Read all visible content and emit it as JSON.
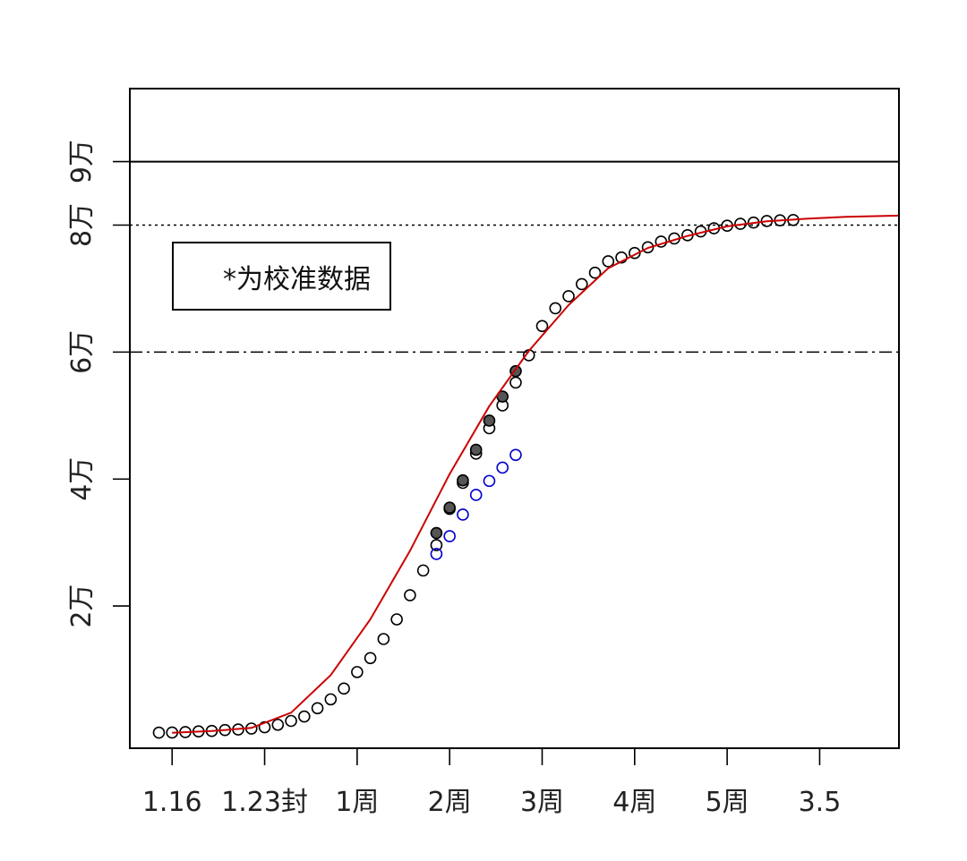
{
  "chart_data": {
    "type": "scatter",
    "x_ticks": [
      {
        "x": 0,
        "label": "1.16"
      },
      {
        "x": 7,
        "label": "1.23封"
      },
      {
        "x": 14,
        "label": "1周"
      },
      {
        "x": 21,
        "label": "2周"
      },
      {
        "x": 28,
        "label": "3周"
      },
      {
        "x": 35,
        "label": "4周"
      },
      {
        "x": 42,
        "label": "5周"
      },
      {
        "x": 49,
        "label": "3.5"
      }
    ],
    "y_ticks": [
      {
        "y": 20000,
        "label": "2万"
      },
      {
        "y": 40000,
        "label": "4万"
      },
      {
        "y": 60000,
        "label": "6万"
      },
      {
        "y": 80000,
        "label": "8万"
      },
      {
        "y": 90000,
        "label": "9万"
      }
    ],
    "xlim": [
      -3.2,
      55
    ],
    "ylim": [
      -2400,
      101500
    ],
    "reference_lines": [
      {
        "y": 90000,
        "style": "solid",
        "color": "#000000"
      },
      {
        "y": 80000,
        "style": "dotted",
        "color": "#000000"
      },
      {
        "y": 60000,
        "style": "dashdot",
        "color": "#000000"
      }
    ],
    "legend": {
      "text": "*为校准数据",
      "position": "top-left"
    },
    "colors": {
      "observed": "#000000",
      "calibration": "#0000cc",
      "fit": "#cc0000"
    },
    "series": [
      {
        "kind": "points-open",
        "color": "#000000",
        "x": [
          -1,
          0,
          1,
          2,
          3,
          4,
          5,
          6,
          7,
          8,
          9,
          10,
          11,
          12,
          13,
          14,
          15,
          16,
          17,
          18,
          19,
          20,
          21,
          22,
          23,
          24,
          25,
          26,
          27,
          28,
          29,
          30,
          31,
          32,
          33,
          34,
          35,
          36,
          37,
          38,
          39,
          40,
          41,
          42,
          43,
          44,
          45,
          46,
          47
        ],
        "y": [
          60,
          70,
          150,
          250,
          320,
          470,
          550,
          700,
          900,
          1300,
          1900,
          2600,
          3900,
          5300,
          7000,
          9600,
          11800,
          14800,
          17900,
          21700,
          25600,
          29600,
          35300,
          39400,
          44000,
          48000,
          51600,
          55200,
          59500,
          64100,
          66900,
          68800,
          70700,
          72500,
          74300,
          74900,
          75600,
          76500,
          77400,
          77900,
          78400,
          79000,
          79500,
          79900,
          80200,
          80400,
          80650,
          80750,
          80800
        ]
      },
      {
        "kind": "points-filled",
        "color": "#000000",
        "x": [
          20,
          21,
          22,
          23,
          24,
          25,
          26
        ],
        "y": [
          31500,
          35500,
          39800,
          44600,
          49200,
          53000,
          57000
        ]
      },
      {
        "kind": "points-open",
        "color": "#0000cc",
        "x": [
          20,
          21,
          22,
          23,
          24,
          25,
          26
        ],
        "y": [
          28200,
          31000,
          34400,
          37500,
          39700,
          41800,
          43800
        ]
      },
      {
        "kind": "line",
        "color": "#cc0000",
        "x": [
          0,
          3,
          6,
          9,
          12,
          15,
          18,
          21,
          24,
          27,
          30,
          33,
          36,
          39,
          42,
          45,
          48,
          51,
          55
        ],
        "y": [
          30,
          300,
          800,
          3200,
          9100,
          17900,
          28700,
          40800,
          51500,
          60200,
          67400,
          73200,
          76400,
          78300,
          79800,
          80600,
          81000,
          81300,
          81500
        ]
      }
    ]
  }
}
